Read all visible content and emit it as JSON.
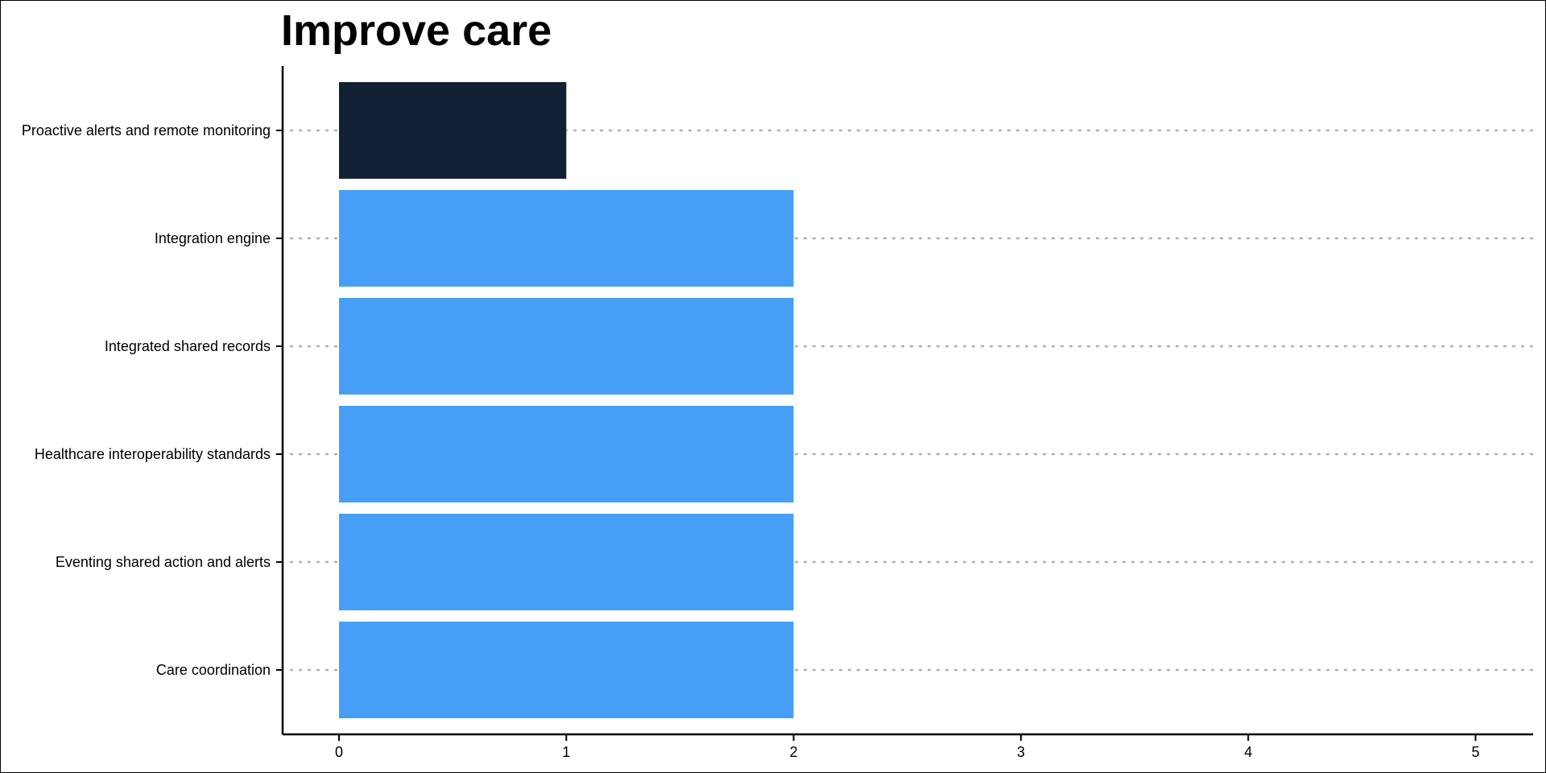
{
  "chart_data": {
    "type": "bar",
    "orientation": "horizontal",
    "title": "Improve care",
    "xlabel": "",
    "ylabel": "",
    "categories": [
      "Proactive alerts and remote monitoring",
      "Integration engine",
      "Integrated shared records",
      "Healthcare interoperability standards",
      "Eventing shared action and alerts",
      "Care coordination"
    ],
    "values": [
      1,
      2,
      2,
      2,
      2,
      2
    ],
    "bar_colors": [
      "#112033",
      "#479ff5",
      "#479ff5",
      "#479ff5",
      "#479ff5",
      "#479ff5"
    ],
    "xticks": [
      "0",
      "1",
      "2",
      "3",
      "4",
      "5"
    ],
    "xlim": [
      0,
      5
    ],
    "grid": "horizontal dotted",
    "legend": "none"
  }
}
